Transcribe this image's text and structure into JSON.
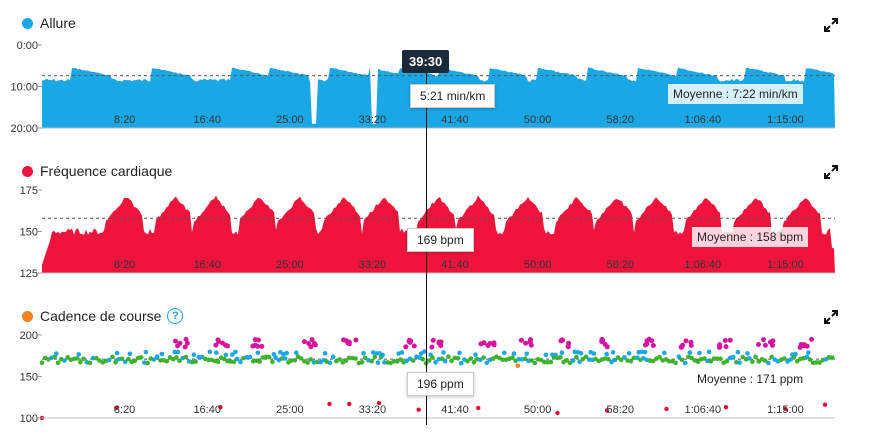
{
  "cursor_time": "39:30",
  "icons": {
    "expand": "expand-arrows-icon",
    "help": "question-circle-icon"
  },
  "colors": {
    "pace": "#1aa7e6",
    "hr": "#f0143c",
    "cad_orange": "#f5821f"
  },
  "chart_data": [
    {
      "type": "area",
      "title": "Allure",
      "y_ticks": [
        "0:00",
        "10:00",
        "20:00"
      ],
      "ylim": [
        "0:00",
        "20:00"
      ],
      "y_inverted": true,
      "x_ticks": [
        "8:20",
        "16:40",
        "25:00",
        "33:20",
        "41:40",
        "50:00",
        "58:20",
        "1:06:40",
        "1:15:00"
      ],
      "x_range_min": [
        0,
        80
      ],
      "cursor_value": "5:21 min/km",
      "average_label": "Moyenne : 7:22 min/km",
      "average_min_per_km": 7.37,
      "typical_min_per_km": 8.5,
      "surges_at_min": [
        3,
        11,
        19,
        23,
        29,
        33,
        36,
        40,
        45,
        50,
        55,
        60,
        64,
        71,
        77
      ],
      "surge_min_per_km": 5.3
    },
    {
      "type": "area",
      "title": "Fréquence cardiaque",
      "y_ticks": [
        "175",
        "150",
        "125"
      ],
      "ylim": [
        125,
        175
      ],
      "x_ticks": [
        "8:20",
        "16:40",
        "25:00",
        "33:20",
        "41:40",
        "50:00",
        "58:20",
        "1:06:40",
        "1:15:00"
      ],
      "x_range_min": [
        0,
        80
      ],
      "cursor_value": "169 bpm",
      "average_label": "Moyenne : 158 bpm",
      "average_bpm": 158,
      "base_bpm": 150,
      "peaks_at_min": [
        8.5,
        13.5,
        17.5,
        22,
        26,
        30.5,
        34.5,
        40,
        44,
        49,
        54,
        58,
        62,
        67,
        72,
        77
      ],
      "peak_bpm": 171
    },
    {
      "type": "scatter",
      "title": "Cadence de course",
      "y_ticks": [
        "200",
        "150",
        "100"
      ],
      "ylim": [
        100,
        200
      ],
      "x_ticks": [
        "8:20",
        "16:40",
        "25:00",
        "33:20",
        "41:40",
        "50:00",
        "58:20",
        "1:06:40",
        "1:15:00"
      ],
      "x_range_min": [
        0,
        80
      ],
      "cursor_value": "196 ppm",
      "average_label": "Moyenne : 171 ppm",
      "average_ppm": 171,
      "clusters_magenta_min": [
        14,
        18,
        22,
        27,
        31,
        37,
        40,
        45,
        49,
        53,
        57,
        61,
        65,
        69,
        73,
        77
      ],
      "magenta_ppm": 190,
      "outliers": [
        [
          0,
          100
        ],
        [
          7.5,
          112
        ],
        [
          18,
          113
        ],
        [
          31,
          117
        ],
        [
          38,
          110
        ],
        [
          44,
          112
        ],
        [
          52,
          106
        ],
        [
          57,
          109
        ],
        [
          63,
          111
        ],
        [
          69,
          113
        ],
        [
          75,
          111
        ],
        [
          79,
          116
        ],
        [
          29,
          117
        ],
        [
          34,
          118
        ]
      ],
      "orange_points": [
        [
          48,
          163
        ]
      ]
    }
  ]
}
